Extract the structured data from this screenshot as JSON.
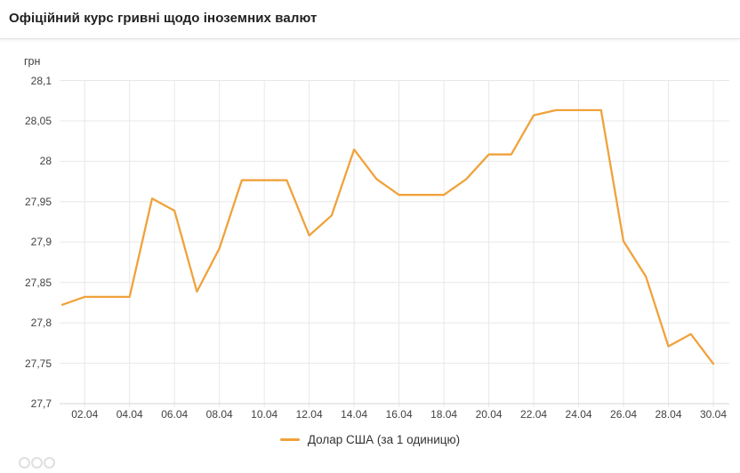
{
  "header": {
    "title": "Офіційний курс гривні щодо іноземних валют"
  },
  "chart_data": {
    "type": "line",
    "title": "Офіційний курс гривні щодо іноземних валют",
    "xlabel": "",
    "ylabel": "грн",
    "ylim": [
      27.7,
      28.1
    ],
    "grid": true,
    "legend_position": "bottom",
    "x": [
      "01.04",
      "02.04",
      "03.04",
      "04.04",
      "05.04",
      "06.04",
      "07.04",
      "08.04",
      "09.04",
      "10.04",
      "11.04",
      "12.04",
      "13.04",
      "14.04",
      "15.04",
      "16.04",
      "17.04",
      "18.04",
      "19.04",
      "20.04",
      "21.04",
      "22.04",
      "23.04",
      "24.04",
      "25.04",
      "26.04",
      "27.04",
      "28.04",
      "29.04",
      "30.04"
    ],
    "x_tick_labels": [
      "02.04",
      "04.04",
      "06.04",
      "08.04",
      "10.04",
      "12.04",
      "14.04",
      "16.04",
      "18.04",
      "20.04",
      "22.04",
      "24.04",
      "26.04",
      "28.04",
      "30.04"
    ],
    "y_ticks": [
      28.1,
      28.05,
      28.0,
      27.95,
      27.9,
      27.85,
      27.8,
      27.75,
      27.7
    ],
    "y_tick_labels": [
      "28,1",
      "28,05",
      "28",
      "27,95",
      "27,9",
      "27,85",
      "27,8",
      "27,75",
      "27,7"
    ],
    "series": [
      {
        "name": "Долар США (за 1 одиницю)",
        "color": "#F0A23C",
        "values": [
          27.8224,
          27.8322,
          27.8322,
          27.8322,
          27.9539,
          27.9388,
          27.8386,
          27.8922,
          27.9765,
          27.9765,
          27.9765,
          27.9082,
          27.933,
          28.0145,
          27.978,
          27.9584,
          27.9584,
          27.9584,
          27.978,
          28.0085,
          28.0085,
          28.057,
          28.0633,
          28.0633,
          28.0633,
          27.901,
          27.857,
          27.771,
          27.786,
          27.7493
        ]
      }
    ],
    "grid_color": "#e8e8e8",
    "axis_line_color": "#d6d6d6"
  }
}
